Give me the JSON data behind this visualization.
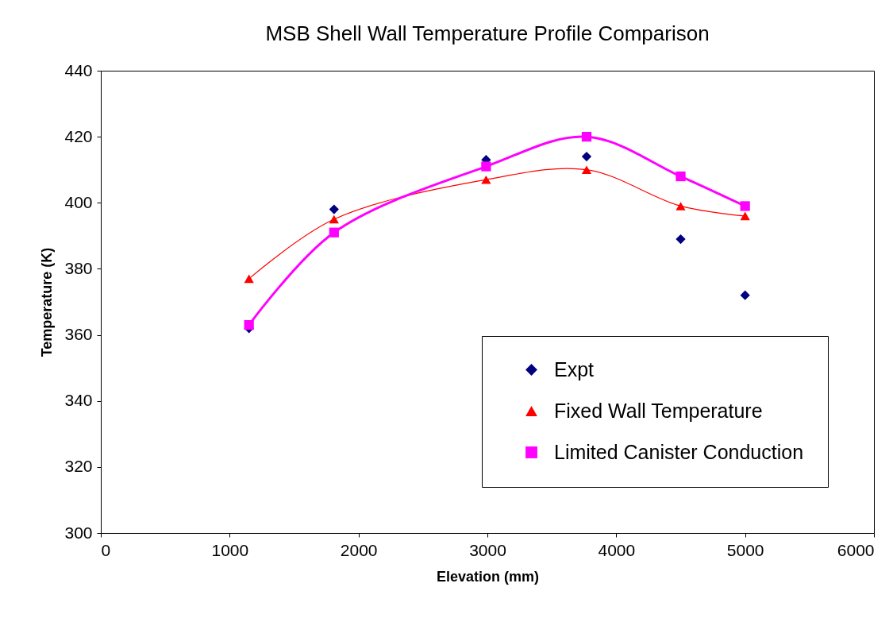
{
  "chart_data": {
    "type": "line",
    "title": "MSB Shell Wall Temperature Profile Comparison",
    "xlabel": "Elevation (mm)",
    "ylabel": "Temperature (K)",
    "xlim": [
      0,
      6000
    ],
    "xticks": [
      0,
      {
        "value": 1000,
        "label": "1000"
      },
      {
        "value": 2000,
        "label": "2000"
      },
      {
        "value": 3000,
        "label": "3000"
      },
      {
        "value": 4000,
        "label": "4000"
      },
      {
        "value": 5000,
        "label": "5000"
      },
      {
        "value": 6000,
        "label": "6000"
      }
    ],
    "ylim": [
      300,
      440
    ],
    "yticks": [
      300,
      320,
      340,
      360,
      380,
      400,
      420,
      440
    ],
    "grid": false,
    "legend": "bottom right",
    "x": [
      1150,
      1810,
      2990,
      3770,
      4500,
      5000
    ],
    "series": [
      {
        "name": "Expt",
        "type": "scatter",
        "marker": "diamond",
        "color": "#000080",
        "values": [
          362,
          398,
          413,
          414,
          389,
          372
        ]
      },
      {
        "name": "Fixed Wall Temperature",
        "marker": "triangle",
        "color": "#ff0000",
        "values": [
          377,
          395,
          407,
          410,
          399,
          396
        ]
      },
      {
        "name": "Limited Canister Conduction",
        "marker": "square",
        "color": "#ff00ff",
        "values": [
          363,
          391,
          411,
          420,
          408,
          399
        ]
      }
    ]
  }
}
